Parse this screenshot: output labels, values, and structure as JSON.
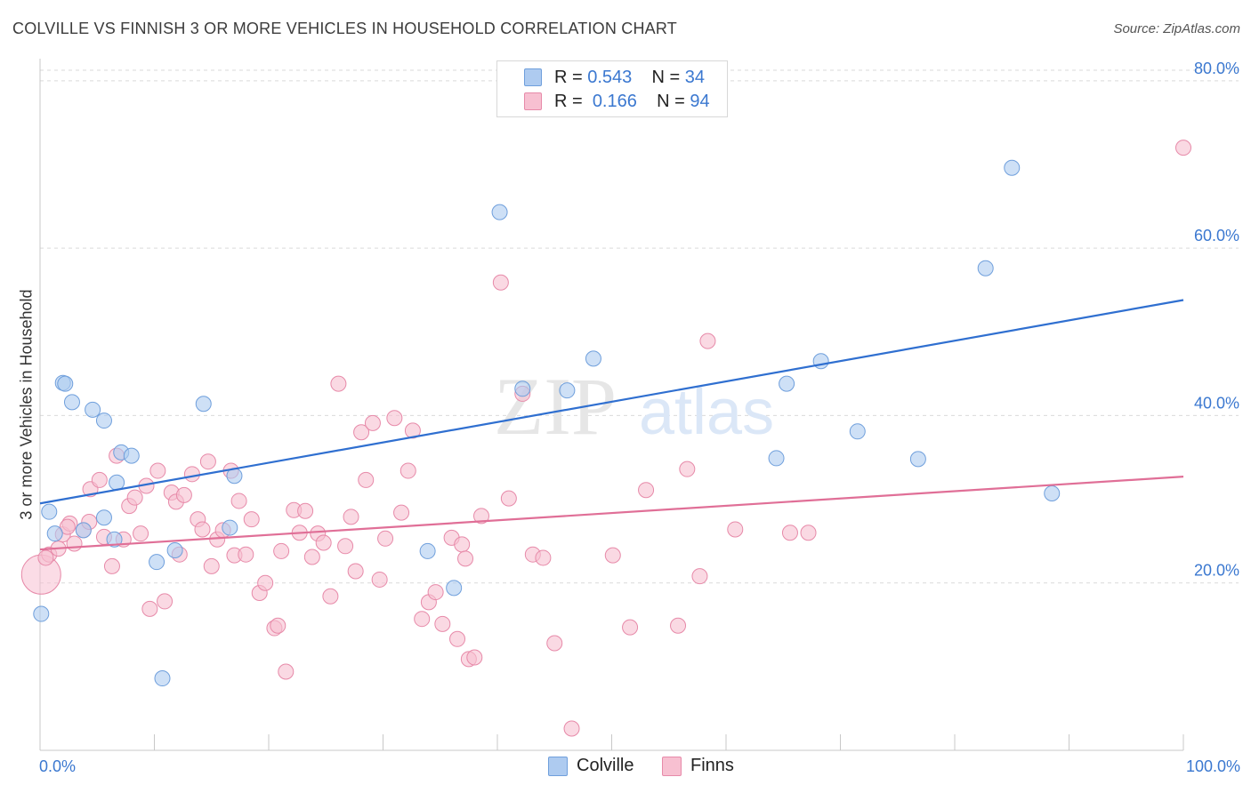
{
  "title": "COLVILLE VS FINNISH 3 OR MORE VEHICLES IN HOUSEHOLD CORRELATION CHART",
  "source": "Source: ZipAtlas.com",
  "watermark": {
    "zip": "ZIP",
    "atlas": "atlas"
  },
  "legend": {
    "rows": [
      {
        "r_label": "R =",
        "r_value": "0.543",
        "n_label": "N =",
        "n_value": "34"
      },
      {
        "r_label": "R =",
        "r_value": "0.166",
        "n_label": "N =",
        "n_value": "94"
      }
    ]
  },
  "bottom_legend": {
    "colville": "Colville",
    "finns": "Finns"
  },
  "colors": {
    "colville_fill": "#aecbf0",
    "colville_stroke": "#6f9fdc",
    "colville_line": "#2f6fd0",
    "finns_fill": "#f7c0d1",
    "finns_stroke": "#e78aa9",
    "finns_line": "#e06f97",
    "axis_text": "#3b78d0",
    "grid": "#d9d9d9"
  },
  "chart_data": {
    "type": "scatter",
    "title": "COLVILLE VS FINNISH 3 OR MORE VEHICLES IN HOUSEHOLD CORRELATION CHART",
    "xlabel": "",
    "ylabel": "3 or more Vehicles in Household",
    "xlim": [
      0,
      100
    ],
    "ylim": [
      0,
      82
    ],
    "x_tick_labels": [
      "0.0%",
      "100.0%"
    ],
    "y_ticks": [
      20,
      40,
      60,
      80
    ],
    "y_tick_labels": [
      "20.0%",
      "40.0%",
      "60.0%",
      "80.0%"
    ],
    "grid": true,
    "legend_position": "top-center",
    "series": [
      {
        "name": "Colville",
        "r": 0.543,
        "n": 34,
        "trend": {
          "x": [
            0,
            100
          ],
          "y": [
            29.5,
            53.8
          ]
        },
        "points": [
          [
            0.1,
            16.3
          ],
          [
            0.8,
            28.5
          ],
          [
            1.3,
            25.9
          ],
          [
            2.0,
            43.9
          ],
          [
            2.2,
            43.8
          ],
          [
            2.8,
            41.6
          ],
          [
            3.8,
            26.3
          ],
          [
            4.6,
            40.7
          ],
          [
            5.6,
            39.4
          ],
          [
            5.6,
            27.8
          ],
          [
            6.5,
            25.2
          ],
          [
            6.7,
            32.0
          ],
          [
            7.1,
            35.6
          ],
          [
            8.0,
            35.2
          ],
          [
            10.2,
            22.5
          ],
          [
            10.7,
            8.6
          ],
          [
            11.8,
            23.9
          ],
          [
            14.3,
            41.4
          ],
          [
            16.6,
            26.6
          ],
          [
            17.0,
            32.8
          ],
          [
            33.9,
            23.8
          ],
          [
            36.2,
            19.4
          ],
          [
            40.2,
            64.3
          ],
          [
            42.2,
            43.2
          ],
          [
            46.1,
            43.0
          ],
          [
            48.4,
            46.8
          ],
          [
            64.4,
            34.9
          ],
          [
            65.3,
            43.8
          ],
          [
            68.3,
            46.5
          ],
          [
            71.5,
            38.1
          ],
          [
            76.8,
            34.8
          ],
          [
            82.7,
            57.6
          ],
          [
            85.0,
            69.6
          ],
          [
            88.5,
            30.7
          ]
        ]
      },
      {
        "name": "Finns",
        "r": 0.166,
        "n": 94,
        "trend": {
          "x": [
            0,
            100
          ],
          "y": [
            24.0,
            32.7
          ]
        },
        "points": [
          [
            0.1,
            21.0
          ],
          [
            0.8,
            23.4
          ],
          [
            1.6,
            24.1
          ],
          [
            2.0,
            25.8
          ],
          [
            2.6,
            27.1
          ],
          [
            3.0,
            24.7
          ],
          [
            3.8,
            26.3
          ],
          [
            4.3,
            27.3
          ],
          [
            4.4,
            31.2
          ],
          [
            5.2,
            32.3
          ],
          [
            5.6,
            25.5
          ],
          [
            6.3,
            22.0
          ],
          [
            6.7,
            35.2
          ],
          [
            7.3,
            25.2
          ],
          [
            7.8,
            29.2
          ],
          [
            8.3,
            30.2
          ],
          [
            8.8,
            25.9
          ],
          [
            9.3,
            31.6
          ],
          [
            9.6,
            16.9
          ],
          [
            10.3,
            33.4
          ],
          [
            10.9,
            17.8
          ],
          [
            11.5,
            30.8
          ],
          [
            11.9,
            29.7
          ],
          [
            12.2,
            23.4
          ],
          [
            12.6,
            30.5
          ],
          [
            13.3,
            33.0
          ],
          [
            13.8,
            27.6
          ],
          [
            14.2,
            26.4
          ],
          [
            14.7,
            34.5
          ],
          [
            15.0,
            22.0
          ],
          [
            15.5,
            25.2
          ],
          [
            16.0,
            26.3
          ],
          [
            16.7,
            33.4
          ],
          [
            17.0,
            23.3
          ],
          [
            17.4,
            29.8
          ],
          [
            18.0,
            23.4
          ],
          [
            18.5,
            27.6
          ],
          [
            19.2,
            18.8
          ],
          [
            19.7,
            20.0
          ],
          [
            20.5,
            14.6
          ],
          [
            20.8,
            14.9
          ],
          [
            21.1,
            23.8
          ],
          [
            21.5,
            9.4
          ],
          [
            22.2,
            28.7
          ],
          [
            22.7,
            26.0
          ],
          [
            23.2,
            28.6
          ],
          [
            23.8,
            23.1
          ],
          [
            24.3,
            25.9
          ],
          [
            24.8,
            24.8
          ],
          [
            25.4,
            18.4
          ],
          [
            26.1,
            43.8
          ],
          [
            26.7,
            24.4
          ],
          [
            27.2,
            27.9
          ],
          [
            27.6,
            21.4
          ],
          [
            28.1,
            38.0
          ],
          [
            28.5,
            32.3
          ],
          [
            29.1,
            39.1
          ],
          [
            29.7,
            20.4
          ],
          [
            30.2,
            25.3
          ],
          [
            31.0,
            39.7
          ],
          [
            31.6,
            28.4
          ],
          [
            32.2,
            33.4
          ],
          [
            32.6,
            38.2
          ],
          [
            33.4,
            15.7
          ],
          [
            34.0,
            17.7
          ],
          [
            34.6,
            18.9
          ],
          [
            35.2,
            15.1
          ],
          [
            36.0,
            25.4
          ],
          [
            36.5,
            13.3
          ],
          [
            36.9,
            24.6
          ],
          [
            37.2,
            22.9
          ],
          [
            37.5,
            10.9
          ],
          [
            38.0,
            11.1
          ],
          [
            38.6,
            28.0
          ],
          [
            40.3,
            55.9
          ],
          [
            41.0,
            30.1
          ],
          [
            42.2,
            42.6
          ],
          [
            43.1,
            23.4
          ],
          [
            44.0,
            23.0
          ],
          [
            45.0,
            12.8
          ],
          [
            46.5,
            2.6
          ],
          [
            50.1,
            23.3
          ],
          [
            51.6,
            14.7
          ],
          [
            53.0,
            31.1
          ],
          [
            55.8,
            14.9
          ],
          [
            56.6,
            33.6
          ],
          [
            57.7,
            20.8
          ],
          [
            58.4,
            48.9
          ],
          [
            60.8,
            26.4
          ],
          [
            65.6,
            26.0
          ],
          [
            67.2,
            26.0
          ],
          [
            100.0,
            72.0
          ],
          [
            0.5,
            23.0
          ],
          [
            2.4,
            26.7
          ]
        ]
      }
    ]
  }
}
